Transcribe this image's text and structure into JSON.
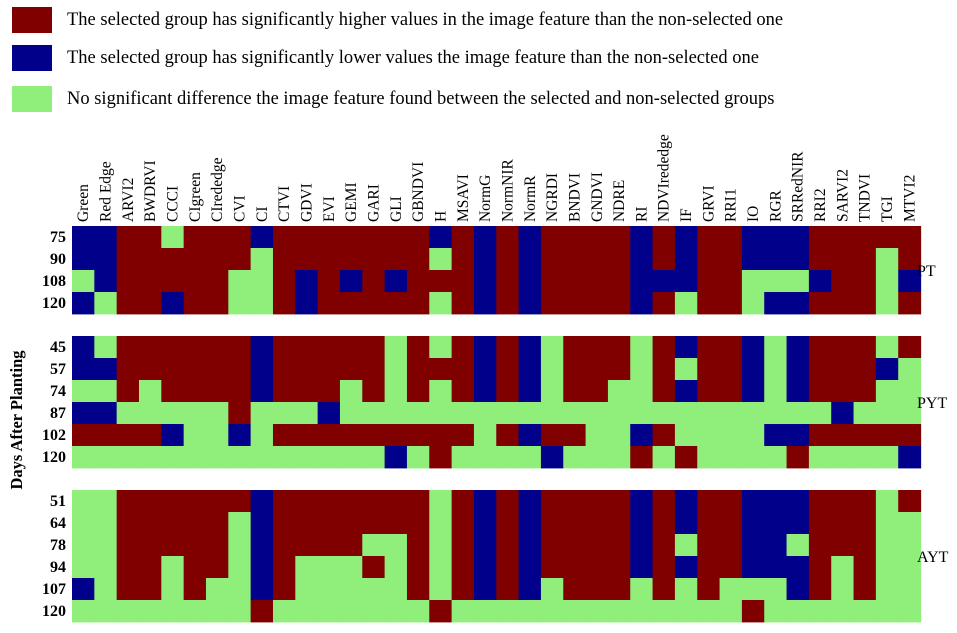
{
  "colors": {
    "H": "#800000",
    "L": "#00008b",
    "N": "#90ee7a"
  },
  "legend": [
    {
      "key": "H",
      "label": "The selected group has significantly higher values in the image feature than the non-selected one"
    },
    {
      "key": "L",
      "label": "The selected group has significantly lower values the image feature than the non-selected one"
    },
    {
      "key": "N",
      "label": "No significant difference the image feature found between the selected and non-selected groups"
    }
  ],
  "chart_data": {
    "type": "heatmap",
    "ylabel": "Days After Planting",
    "columns": [
      "Green",
      "Red Edge",
      "ARVI2",
      "BWDRVI",
      "CCCI",
      "CIgreen",
      "CIrededge",
      "CVI",
      "CI",
      "CTVI",
      "GDVI",
      "EVI",
      "GEMI",
      "GARI",
      "GLI",
      "GBNDVI",
      "H",
      "MSAVI",
      "NormG",
      "NormNIR",
      "NormR",
      "NGRDI",
      "BNDVI",
      "GNDVI",
      "NDRE",
      "RI",
      "NDVIrededge",
      "IF",
      "GRVI",
      "RRI1",
      "IO",
      "RGR",
      "SRRedNIR",
      "RRI2",
      "SARVI2",
      "TNDVI",
      "TGI",
      "MTVI2"
    ],
    "groups": [
      {
        "name": "PT",
        "rows": [
          {
            "day": "75",
            "cells": "LLHHNHHHLHHHHHHHLHLHLHHHHLHLHHLLLHHHHH"
          },
          {
            "day": "90",
            "cells": "LLHHHHHHNHHHHHHHNHLHLHHHHLHLHHLLLHHHNH"
          },
          {
            "day": "108",
            "cells": "NLHHHHHNNHLHLHLHHHLHLHHHHLLLHHNNNLHHNL"
          },
          {
            "day": "120",
            "cells": "LNHHLHHNNHLHHHHHNHLHLHHHHLHNHHNLLHHHNH"
          }
        ]
      },
      {
        "name": "PYT",
        "rows": [
          {
            "day": "45",
            "cells": "LNHHHHHHLHHHHHNHNHLHLNHHHNHLHHLNLHHHNH"
          },
          {
            "day": "57",
            "cells": "LLHHHHHHLHHHHHNHHHLHLNHHHNHNHHLNLHHHLN"
          },
          {
            "day": "74",
            "cells": "NNHNHHHHLHHHNHNHNHLHLNHHNNHLHHLNLHHHNN"
          },
          {
            "day": "87",
            "cells": "LLNNNNNHNNNLNNNNNNNNNNNNNNNNNNNNNNLNNN"
          },
          {
            "day": "102",
            "cells": "HHHHLNNLNHHHHHHHHHNHLHHNNLHNNNNLLHHHHH"
          },
          {
            "day": "120",
            "cells": "NNNNNNNNNNNNNNLNHNNNNLNNNHNHNNNNHNNNNL"
          }
        ]
      },
      {
        "name": "AYT",
        "rows": [
          {
            "day": "51",
            "cells": "NNHHHHHHLHHHHHHHNHLHLHHHHLHLHHLLLHHHNH"
          },
          {
            "day": "64",
            "cells": "NNHHHHHNLHHHHHHHNHLHLHHHHLHLHHLLLHHHNN"
          },
          {
            "day": "78",
            "cells": "NNHHHHHNLHHHHNNHNHLHLHHHHLHNHHLLNHHHNN"
          },
          {
            "day": "94",
            "cells": "NNHHNHHNLHNNNHNHNHLHLHHHHLHLHHLLLHNHNN"
          },
          {
            "day": "107",
            "cells": "LNHHNHNNLHNNNNNHNHLHLNHHHNHNHNNNLHNHNN"
          },
          {
            "day": "120",
            "cells": "NNNNNNNNHNNNNNNNHNNNNNNNNNNNNNHNNNNNNN"
          }
        ]
      }
    ]
  }
}
